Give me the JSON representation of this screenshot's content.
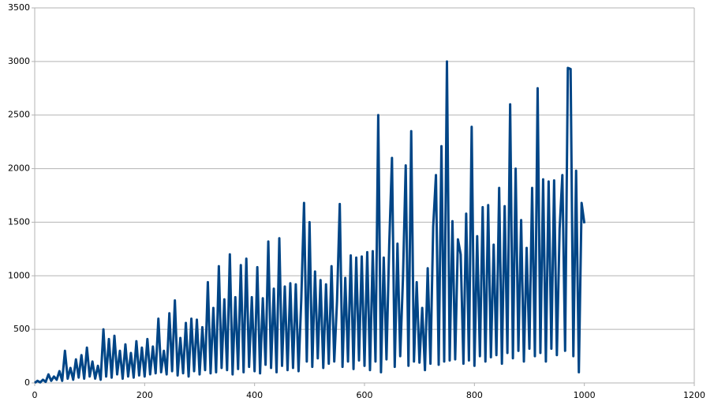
{
  "chart_data": {
    "type": "line",
    "x": [
      0,
      5,
      10,
      15,
      20,
      25,
      30,
      35,
      40,
      45,
      50,
      55,
      60,
      65,
      70,
      75,
      80,
      85,
      90,
      95,
      100,
      105,
      110,
      115,
      120,
      125,
      130,
      135,
      140,
      145,
      150,
      155,
      160,
      165,
      170,
      175,
      180,
      185,
      190,
      195,
      200,
      205,
      210,
      215,
      220,
      225,
      230,
      235,
      240,
      245,
      250,
      255,
      260,
      265,
      270,
      275,
      280,
      285,
      290,
      295,
      300,
      305,
      310,
      315,
      320,
      325,
      330,
      335,
      340,
      345,
      350,
      355,
      360,
      365,
      370,
      375,
      380,
      385,
      390,
      395,
      400,
      405,
      410,
      415,
      420,
      425,
      430,
      435,
      440,
      445,
      450,
      455,
      460,
      465,
      470,
      475,
      480,
      485,
      490,
      495,
      500,
      505,
      510,
      515,
      520,
      525,
      530,
      535,
      540,
      545,
      550,
      555,
      560,
      565,
      570,
      575,
      580,
      585,
      590,
      595,
      600,
      605,
      610,
      615,
      620,
      625,
      630,
      635,
      640,
      645,
      650,
      655,
      660,
      665,
      670,
      675,
      680,
      685,
      690,
      695,
      700,
      705,
      710,
      715,
      720,
      725,
      730,
      735,
      740,
      745,
      750,
      755,
      760,
      765,
      770,
      775,
      780,
      785,
      790,
      795,
      800,
      805,
      810,
      815,
      820,
      825,
      830,
      835,
      840,
      845,
      850,
      855,
      860,
      865,
      870,
      875,
      880,
      885,
      890,
      895,
      900,
      905,
      910,
      915,
      920,
      925,
      930,
      935,
      940,
      945,
      950,
      955,
      960,
      965,
      970,
      975,
      980,
      985,
      990,
      995,
      1000
    ],
    "series": [
      {
        "color": "#004586",
        "values": [
          0,
          20,
          5,
          30,
          10,
          80,
          20,
          60,
          30,
          110,
          20,
          300,
          40,
          140,
          30,
          220,
          50,
          260,
          40,
          330,
          60,
          200,
          40,
          160,
          30,
          500,
          60,
          410,
          50,
          440,
          80,
          300,
          40,
          360,
          60,
          280,
          50,
          390,
          70,
          330,
          60,
          410,
          80,
          340,
          90,
          600,
          100,
          300,
          80,
          650,
          110,
          770,
          70,
          420,
          90,
          560,
          60,
          600,
          110,
          590,
          80,
          520,
          120,
          940,
          90,
          700,
          100,
          1090,
          140,
          780,
          120,
          1200,
          80,
          800,
          130,
          1100,
          100,
          1160,
          150,
          800,
          110,
          1080,
          90,
          790,
          170,
          1320,
          140,
          880,
          100,
          1350,
          160,
          900,
          120,
          930,
          140,
          920,
          110,
          780,
          1680,
          200,
          1500,
          150,
          1040,
          230,
          960,
          140,
          920,
          180,
          1090,
          200,
          760,
          1670,
          150,
          980,
          200,
          1190,
          130,
          1170,
          210,
          1180,
          160,
          1220,
          120,
          1230,
          200,
          2500,
          100,
          1170,
          220,
          1290,
          2100,
          150,
          1300,
          250,
          980,
          2030,
          160,
          2350,
          200,
          940,
          190,
          700,
          120,
          1070,
          180,
          1460,
          1940,
          170,
          2210,
          200,
          3000,
          210,
          1510,
          220,
          1340,
          1200,
          180,
          1580,
          210,
          2390,
          160,
          1370,
          250,
          1640,
          200,
          1660,
          240,
          1290,
          260,
          1820,
          180,
          1650,
          280,
          2600,
          230,
          2000,
          300,
          1520,
          200,
          1260,
          320,
          1820,
          250,
          2750,
          280,
          1900,
          200,
          1880,
          320,
          1890,
          260,
          1440,
          1940,
          300,
          2940,
          2930,
          250,
          1980,
          100,
          1680,
          1490
        ]
      }
    ],
    "xlim": [
      0,
      1200
    ],
    "xticks": [
      0,
      200,
      400,
      600,
      800,
      1000,
      1200
    ],
    "ylim": [
      0,
      3500
    ],
    "yticks": [
      0,
      500,
      1000,
      1500,
      2000,
      2500,
      3000,
      3500
    ],
    "grid": true
  }
}
